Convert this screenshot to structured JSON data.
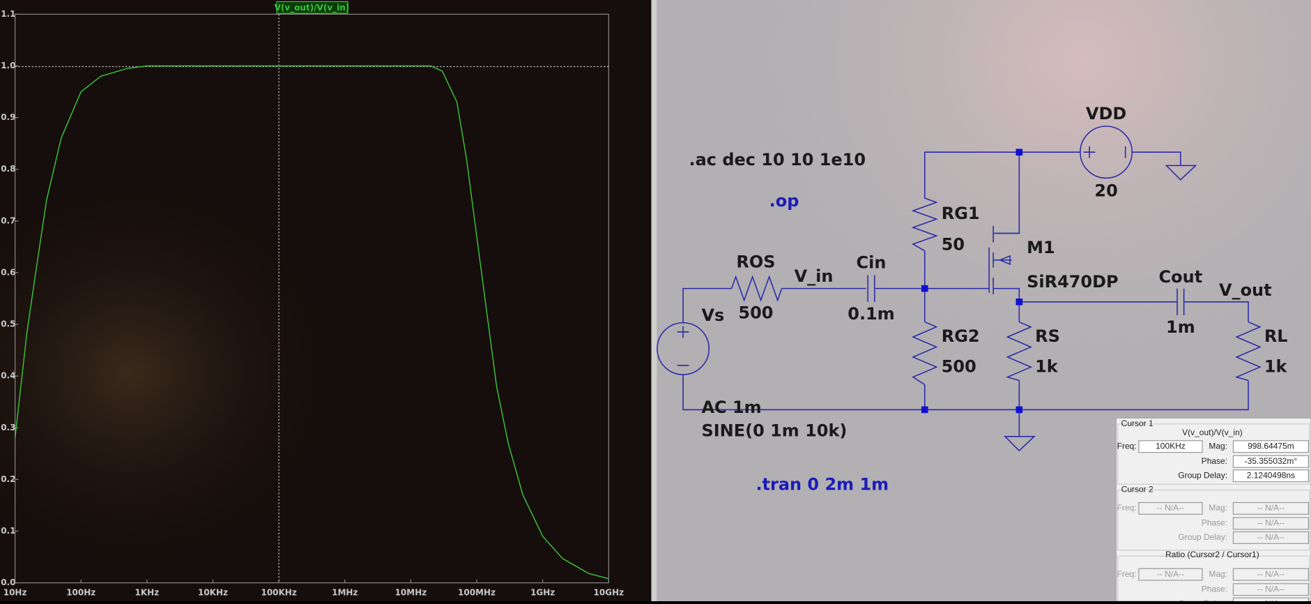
{
  "plot": {
    "type": "line",
    "title": "V(v_out)/V(v_in)",
    "x": [
      10,
      15,
      20,
      30,
      50,
      100,
      200,
      500,
      1000,
      10000,
      100000,
      1000000,
      10000000,
      20000000,
      30000000,
      50000000,
      70000000,
      100000000,
      150000000,
      200000000,
      300000000,
      500000000,
      1000000000,
      2000000000,
      5000000000,
      10000000000
    ],
    "values": [
      0.28,
      0.48,
      0.59,
      0.74,
      0.86,
      0.95,
      0.98,
      0.995,
      1.0,
      1.0,
      1.0,
      1.0,
      1.0,
      1.0,
      0.99,
      0.93,
      0.82,
      0.67,
      0.5,
      0.38,
      0.27,
      0.17,
      0.09,
      0.047,
      0.018,
      0.008
    ],
    "color": "#3cc43c",
    "log_x": true,
    "xlim": [
      10,
      10000000000
    ],
    "xticks": [
      {
        "value": 10,
        "label": "10Hz"
      },
      {
        "value": 100,
        "label": "100Hz"
      },
      {
        "value": 1000,
        "label": "1KHz"
      },
      {
        "value": 10000,
        "label": "10KHz"
      },
      {
        "value": 100000,
        "label": "100KHz"
      },
      {
        "value": 1000000,
        "label": "1MHz"
      },
      {
        "value": 10000000,
        "label": "10MHz"
      },
      {
        "value": 100000000,
        "label": "100MHz"
      },
      {
        "value": 1000000000,
        "label": "1GHz"
      },
      {
        "value": 10000000000,
        "label": "10GHz"
      }
    ],
    "ylim": [
      0,
      1.1
    ],
    "yticks": [
      {
        "value": 0,
        "label": "0.0"
      },
      0.1,
      0.2,
      0.3,
      0.4,
      0.5,
      0.6,
      0.7,
      0.8,
      0.9,
      {
        "value": 1,
        "label": "1.0"
      },
      1.1
    ]
  },
  "schematic": {
    "ac_directive": ".ac dec 10 10 1e10",
    "op_directive": ".op",
    "tran_directive": ".tran 0 2m 1m",
    "vdd_name": "VDD",
    "vdd_value": "20",
    "rg1_name": "RG1",
    "rg1_value": "50",
    "m1_name": "M1",
    "m1_model": "SiR470DP",
    "ros_name": "ROS",
    "ros_value": "500",
    "vin_net": "V_in",
    "cin_name": "Cin",
    "cin_value": "0.1m",
    "cout_name": "Cout",
    "cout_value": "1m",
    "vout_net": "V_out",
    "vs_name": "Vs",
    "rg2_name": "RG2",
    "rg2_value": "500",
    "rs_name": "RS",
    "rs_value": "1k",
    "rl_name": "RL",
    "rl_value": "1k",
    "vs_ac": "AC 1m",
    "vs_sine": "SINE(0 1m 10k)"
  },
  "cursor_panel": {
    "cursor1": {
      "heading": "Cursor 1",
      "trace": "V(v_out)/V(v_in)",
      "freq_label": "Freq:",
      "freq": {
        "value": 100000,
        "label": "100KHz"
      },
      "mag_label": "Mag:",
      "mag": {
        "value": 0.99864475,
        "label": "998.64475m"
      },
      "phase_label": "Phase:",
      "phase": "-35.355032m°",
      "delay_label": "Group Delay:",
      "delay": "2.1240498ns"
    },
    "cursor2": {
      "heading": "Cursor 2",
      "freq_label": "Freq:",
      "freq": "-- N/A--",
      "mag_label": "Mag:",
      "mag": "-- N/A--",
      "phase_label": "Phase:",
      "phase": "-- N/A--",
      "delay_label": "Group Delay:",
      "delay": "-- N/A--"
    },
    "ratio": {
      "heading": "Ratio (Cursor2 / Cursor1)",
      "freq_label": "Freq:",
      "freq": "-- N/A--",
      "mag_label": "Mag:",
      "mag": "-- N/A--",
      "phase_label": "Phase:",
      "phase": "-- N/A--",
      "delay_label": "Group Delay:",
      "delay": "-- N/A--"
    }
  }
}
